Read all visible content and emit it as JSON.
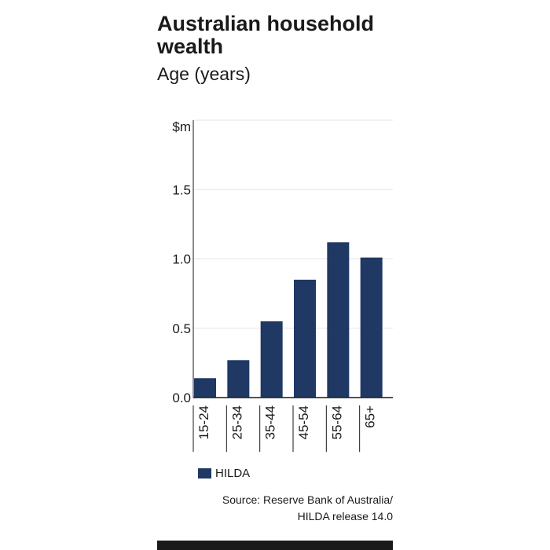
{
  "chart_data": {
    "type": "bar",
    "title": "Australian household wealth",
    "subtitle": "Age (years)",
    "ylabel": "$m",
    "ylim": [
      0,
      2.0
    ],
    "yticks": [
      {
        "value": 0,
        "label": "0.0"
      },
      {
        "value": 0.5,
        "label": "0.5"
      },
      {
        "value": 1.0,
        "label": "1.0"
      },
      {
        "value": 1.5,
        "label": "1.5"
      }
    ],
    "categories": [
      "15-24",
      "25-34",
      "35-44",
      "45-54",
      "55-64",
      "65+"
    ],
    "series": [
      {
        "name": "HILDA",
        "values": [
          0.14,
          0.27,
          0.55,
          0.85,
          1.12,
          1.01
        ]
      }
    ],
    "grid": true,
    "legend_position": "bottom-left",
    "bar_color": "#1f3864"
  },
  "source_lines": [
    "Source: Reserve Bank of Australia/",
    "HILDA release 14.0"
  ]
}
